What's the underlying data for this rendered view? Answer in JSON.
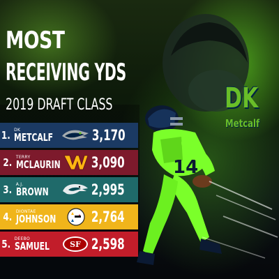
{
  "title": {
    "line1": "MOST",
    "line2": "RECEIVING YDS",
    "subtitle": "2019 DRAFT CLASS"
  },
  "featured": {
    "first": "DK",
    "last": "Metcalf",
    "jersey_number": "14"
  },
  "list": [
    {
      "rank": "1.",
      "first": "DK",
      "last": "METCALF",
      "yards": "3,170",
      "team_icon": "seahawks-logo-icon",
      "color": "#1b3a63"
    },
    {
      "rank": "2.",
      "first": "TERRY",
      "last": "MCLAURIN",
      "yards": "3,090",
      "team_icon": "commanders-logo-icon",
      "color": "#7d1a2c"
    },
    {
      "rank": "3.",
      "first": "A.J.",
      "last": "BROWN",
      "yards": "2,995",
      "team_icon": "eagles-logo-icon",
      "color": "#1f6a6a"
    },
    {
      "rank": "4.",
      "first": "DIONTAE",
      "last": "JOHNSON",
      "yards": "2,764",
      "team_icon": "steelers-logo-icon",
      "color": "#f0b51b"
    },
    {
      "rank": "5.",
      "first": "DEEBO",
      "last": "SAMUEL",
      "yards": "2,598",
      "team_icon": "49ers-logo-icon",
      "color": "#c21d2a"
    }
  ],
  "colors": {
    "seahawks_green": "#69be28",
    "seahawks_navy": "#002244"
  }
}
